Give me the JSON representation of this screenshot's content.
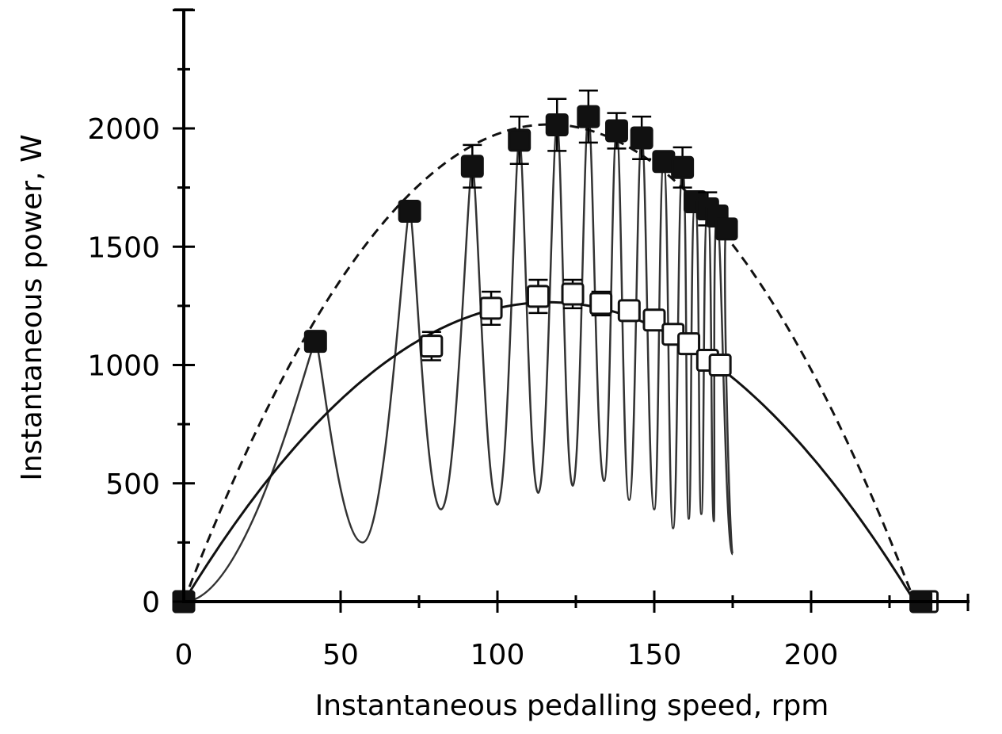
{
  "chart_data": {
    "type": "scatter",
    "xlabel": "Instantaneous pedalling speed, rpm",
    "ylabel": "Instantaneous power, W",
    "xlim": [
      0,
      250
    ],
    "ylim": [
      0,
      2500
    ],
    "xticks": [
      0,
      50,
      100,
      150,
      200
    ],
    "yticks": [
      0,
      500,
      1000,
      1500,
      2000
    ],
    "xtick_labels": [
      "0",
      "50",
      "100",
      "150",
      "200"
    ],
    "ytick_labels": [
      "0",
      "500",
      "1000",
      "1500",
      "2000"
    ],
    "grid": false,
    "series": [
      {
        "marker": "filled-square",
        "color": "#111111",
        "x": [
          0,
          42,
          72,
          92,
          107,
          119,
          129,
          138,
          146,
          153,
          159,
          163,
          167,
          170,
          173,
          235
        ],
        "y": [
          0,
          1100,
          1650,
          1840,
          1950,
          2015,
          2050,
          1990,
          1960,
          1860,
          1835,
          1690,
          1660,
          1630,
          1575,
          0
        ],
        "err": [
          0,
          0,
          40,
          90,
          100,
          110,
          110,
          75,
          90,
          0,
          85,
          0,
          70,
          0,
          0,
          0
        ]
      },
      {
        "marker": "open-square",
        "color": "#111111",
        "x": [
          0,
          79,
          98,
          113,
          124,
          133,
          142,
          150,
          156,
          161,
          167,
          171,
          237
        ],
        "y": [
          0,
          1080,
          1240,
          1290,
          1300,
          1260,
          1230,
          1190,
          1130,
          1090,
          1020,
          1000,
          0
        ],
        "err": [
          0,
          60,
          70,
          70,
          60,
          50,
          0,
          0,
          0,
          0,
          0,
          0,
          0
        ]
      },
      {
        "style": "dashed-fit",
        "color": "#111111",
        "fit": {
          "type": "parabola",
          "x_intercept": 233,
          "peak_x": 120,
          "peak_y": 2015
        }
      },
      {
        "style": "solid-fit",
        "color": "#111111",
        "fit": {
          "type": "parabola",
          "x_intercept": 233,
          "peak_x": 115,
          "peak_y": 1265
        }
      },
      {
        "style": "oscillating-trace",
        "color": "#333333",
        "peaks": [
          {
            "x": 42,
            "y": 1100
          },
          {
            "x": 72,
            "y": 1650
          },
          {
            "x": 92,
            "y": 1840
          },
          {
            "x": 107,
            "y": 1950
          },
          {
            "x": 119,
            "y": 2015
          },
          {
            "x": 129,
            "y": 2050
          },
          {
            "x": 138,
            "y": 1990
          },
          {
            "x": 146,
            "y": 1960
          },
          {
            "x": 153,
            "y": 1860
          },
          {
            "x": 159,
            "y": 1835
          },
          {
            "x": 163,
            "y": 1690
          },
          {
            "x": 167,
            "y": 1660
          },
          {
            "x": 170,
            "y": 1630
          },
          {
            "x": 173,
            "y": 1575
          }
        ],
        "troughs": [
          {
            "x": 57,
            "y": 250
          },
          {
            "x": 82,
            "y": 390
          },
          {
            "x": 100,
            "y": 410
          },
          {
            "x": 113,
            "y": 460
          },
          {
            "x": 124,
            "y": 490
          },
          {
            "x": 134,
            "y": 510
          },
          {
            "x": 142,
            "y": 430
          },
          {
            "x": 150,
            "y": 390
          },
          {
            "x": 156,
            "y": 310
          },
          {
            "x": 161,
            "y": 350
          },
          {
            "x": 165,
            "y": 370
          },
          {
            "x": 169,
            "y": 340
          },
          {
            "x": 175,
            "y": 200
          }
        ]
      }
    ]
  }
}
